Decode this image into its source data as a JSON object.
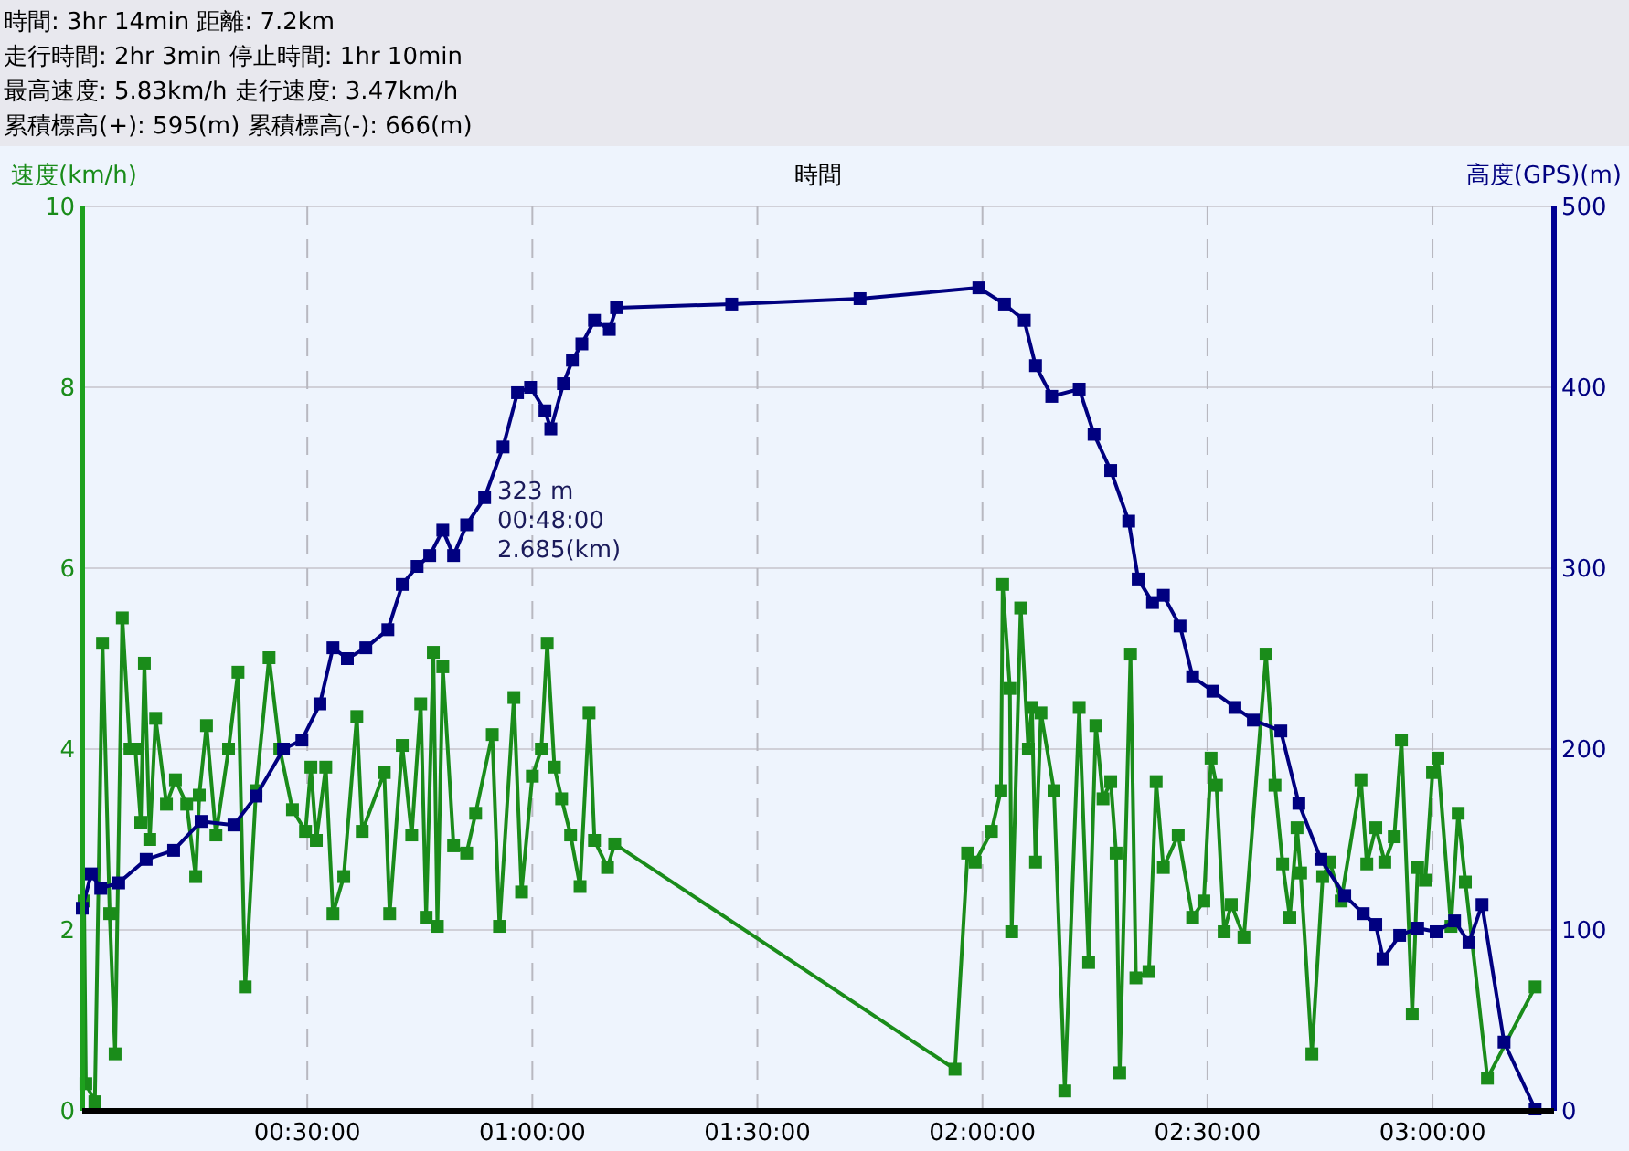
{
  "chart_data": {
    "type": "line",
    "title": "時間: 3hr 14min  距離: 7.2km",
    "subtitle": "走行時間: 2hr 3min  停止時間: 1hr 10min\n最高速度: 5.83km/h  走行速度: 3.47km/h\n累積標高(+): 595(m)  累積標高(-): 666(m)",
    "xlabel": "時間",
    "ylabel": "速度(km/h)",
    "y2label": "高度(GPS)(m)",
    "xlim": [
      0,
      3.27
    ],
    "xticks": [
      {
        "value": 0.5,
        "label": "00:30:00"
      },
      {
        "value": 1,
        "label": "01:00:00"
      },
      {
        "value": 1.5,
        "label": "01:30:00"
      },
      {
        "value": 2,
        "label": "02:00:00"
      },
      {
        "value": 2.5,
        "label": "02:30:00"
      },
      {
        "value": 3,
        "label": "03:00:00"
      }
    ],
    "ylim": [
      0,
      10
    ],
    "yticks": [
      0,
      2,
      4,
      6,
      8,
      10
    ],
    "y2lim": [
      0,
      500
    ],
    "y2ticks": [
      0,
      100,
      200,
      300,
      400,
      500
    ],
    "grid": true,
    "marker": "square",
    "line_style": "solid",
    "annotations": [
      "323 m\n00:48:00\n2.685(km)"
    ],
    "series": [
      {
        "color": "#1a8c1a",
        "x": [
          0.004,
          0.008,
          0.028,
          0.045,
          0.061,
          0.073,
          0.089,
          0.106,
          0.118,
          0.13,
          0.138,
          0.15,
          0.163,
          0.187,
          0.207,
          0.232,
          0.252,
          0.26,
          0.276,
          0.297,
          0.325,
          0.346,
          0.362,
          0.386,
          0.415,
          0.439,
          0.467,
          0.496,
          0.508,
          0.52,
          0.541,
          0.557,
          0.581,
          0.61,
          0.622,
          0.671,
          0.683,
          0.711,
          0.732,
          0.752,
          0.764,
          0.78,
          0.789,
          0.801,
          0.825,
          0.854,
          0.874,
          0.911,
          0.927,
          0.959,
          0.976,
          1.0,
          1.02,
          1.033,
          1.049,
          1.065,
          1.085,
          1.106,
          1.126,
          1.138,
          1.167,
          1.183,
          1.939,
          1.967,
          1.984,
          2.02,
          2.041,
          2.045,
          2.061,
          2.065,
          2.085,
          2.102,
          2.11,
          2.118,
          2.13,
          2.159,
          2.183,
          2.215,
          2.236,
          2.252,
          2.268,
          2.285,
          2.297,
          2.305,
          2.329,
          2.341,
          2.37,
          2.386,
          2.402,
          2.435,
          2.467,
          2.492,
          2.508,
          2.52,
          2.537,
          2.553,
          2.581,
          2.63,
          2.65,
          2.667,
          2.683,
          2.699,
          2.707,
          2.732,
          2.756,
          2.772,
          2.797,
          2.841,
          2.854,
          2.874,
          2.894,
          2.915,
          2.931,
          2.955,
          2.967,
          2.984,
          3.0,
          3.012,
          3.041,
          3.057,
          3.073,
          3.122,
          3.228
        ],
        "values": [
          2.32,
          0.3,
          0.1,
          5.17,
          2.18,
          0.63,
          5.45,
          4.0,
          4.0,
          3.19,
          4.95,
          3.0,
          4.34,
          3.39,
          3.66,
          3.39,
          2.59,
          3.49,
          4.26,
          3.05,
          4.0,
          4.85,
          1.37,
          3.54,
          5.01,
          4.0,
          3.33,
          3.09,
          3.8,
          2.99,
          3.8,
          2.18,
          2.59,
          4.36,
          3.09,
          3.74,
          2.18,
          4.04,
          3.05,
          4.5,
          2.14,
          5.07,
          2.04,
          4.91,
          2.93,
          2.85,
          3.29,
          4.16,
          2.04,
          4.57,
          2.42,
          3.7,
          4.0,
          5.17,
          3.8,
          3.45,
          3.05,
          2.48,
          4.4,
          2.99,
          2.69,
          2.95,
          0.46,
          2.85,
          2.75,
          3.09,
          3.54,
          5.82,
          4.67,
          1.98,
          5.56,
          4.0,
          4.46,
          2.75,
          4.4,
          3.54,
          0.22,
          4.46,
          1.64,
          4.26,
          3.45,
          3.64,
          2.85,
          0.42,
          5.05,
          1.47,
          1.54,
          3.64,
          2.69,
          3.05,
          2.14,
          2.32,
          3.9,
          3.6,
          1.98,
          2.28,
          1.92,
          5.05,
          3.6,
          2.73,
          2.14,
          3.13,
          2.63,
          0.63,
          2.59,
          2.75,
          2.32,
          3.66,
          2.73,
          3.13,
          2.75,
          3.03,
          4.1,
          1.07,
          2.69,
          2.55,
          3.74,
          3.9,
          2.04,
          3.29,
          2.53,
          0.36,
          1.37
        ]
      },
      {
        "color": "#000080",
        "axis": "y2",
        "x": [
          0,
          0.02,
          0.041,
          0.081,
          0.142,
          0.203,
          0.264,
          0.337,
          0.386,
          0.447,
          0.488,
          0.528,
          0.557,
          0.589,
          0.63,
          0.679,
          0.711,
          0.744,
          0.772,
          0.801,
          0.825,
          0.854,
          0.894,
          0.935,
          0.967,
          0.996,
          1.028,
          1.041,
          1.069,
          1.089,
          1.11,
          1.138,
          1.171,
          1.187,
          1.443,
          1.728,
          1.992,
          2.049,
          2.093,
          2.118,
          2.154,
          2.215,
          2.248,
          2.285,
          2.325,
          2.346,
          2.378,
          2.402,
          2.439,
          2.467,
          2.512,
          2.561,
          2.602,
          2.663,
          2.703,
          2.752,
          2.805,
          2.846,
          2.874,
          2.89,
          2.927,
          2.967,
          3.008,
          3.049,
          3.081,
          3.11,
          3.159,
          3.228
        ],
        "values": [
          112,
          131,
          123,
          126,
          139,
          144,
          160,
          158,
          174,
          200,
          205,
          225,
          256,
          250,
          256,
          266,
          291,
          301,
          307,
          321,
          307,
          324,
          339,
          367,
          397,
          400,
          387,
          377,
          402,
          415,
          424,
          437,
          432,
          444,
          446,
          449,
          455,
          446,
          437,
          412,
          395,
          399,
          374,
          354,
          326,
          294,
          281,
          285,
          268,
          240,
          232,
          223,
          216,
          210,
          170,
          139,
          119,
          109,
          103,
          84,
          97,
          101,
          99,
          105,
          93,
          114,
          38,
          1
        ]
      }
    ]
  }
}
